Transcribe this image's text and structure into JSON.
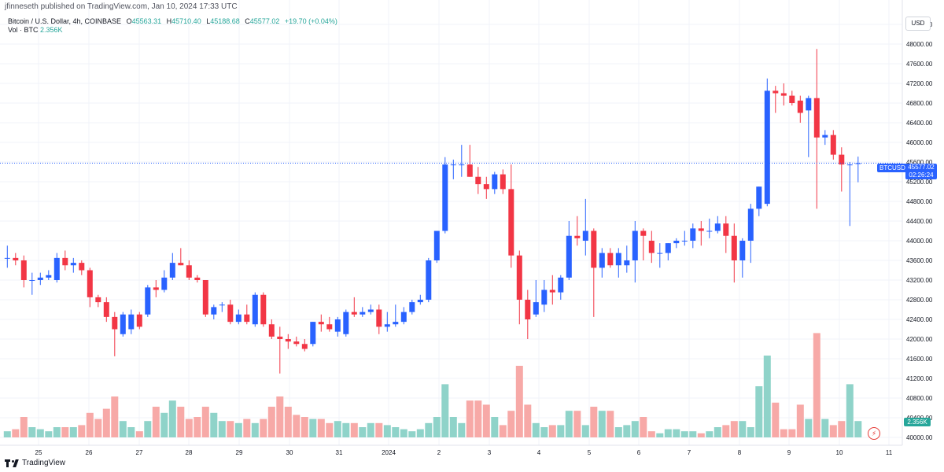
{
  "header": {
    "published": "jfinneseth published on TradingView.com, Jan 10, 2024 17:33 UTC"
  },
  "legend": {
    "symbol_line": "Bitcoin / U.S. Dollar, 4h, COINBASE",
    "o_label": "O",
    "o_value": "45563.31",
    "h_label": "H",
    "h_value": "45710.40",
    "l_label": "L",
    "l_value": "45188.68",
    "c_label": "C",
    "c_value": "45577.02",
    "change": "+19.70 (+0.04%)",
    "vol_label": "Vol · BTC",
    "vol_value": "2.356K"
  },
  "currency_button": "USD",
  "last_price": {
    "symbol": "BTCUSD",
    "price": "45577.02",
    "countdown": "02:26:24"
  },
  "volume_tag": "2.356K",
  "brand": "TradingView",
  "colors": {
    "up": "#2962ff",
    "down": "#f23645",
    "vol_up": "#8fd3c9",
    "vol_down": "#f7a9a7",
    "grid": "#f0f3fa",
    "price_line": "#2962ff"
  },
  "chart_data": {
    "type": "candlestick",
    "interval": "4h",
    "y_axis": {
      "min": 40000,
      "max": 48400,
      "ticks": [
        "40000.00",
        "40400.00",
        "40800.00",
        "41200.00",
        "41600.00",
        "42000.00",
        "42400.00",
        "42800.00",
        "43200.00",
        "43600.00",
        "44000.00",
        "44400.00",
        "44800.00",
        "45200.00",
        "45600.00",
        "46000.00",
        "46400.00",
        "46800.00",
        "47200.00",
        "47600.00",
        "48000.00",
        "48400.00"
      ]
    },
    "x_axis": {
      "ticks": [
        "25",
        "26",
        "27",
        "28",
        "29",
        "30",
        "31",
        "2024",
        "2",
        "3",
        "4",
        "5",
        "6",
        "7",
        "8",
        "9",
        "10",
        "11"
      ]
    },
    "candles": [
      {
        "o": 43650,
        "h": 43900,
        "l": 43450,
        "c": 43650,
        "v": 0.3
      },
      {
        "o": 43650,
        "h": 43750,
        "l": 43500,
        "c": 43600,
        "v": 0.4
      },
      {
        "o": 43600,
        "h": 43700,
        "l": 43050,
        "c": 43200,
        "v": 1.0
      },
      {
        "o": 43200,
        "h": 43350,
        "l": 42900,
        "c": 43200,
        "v": 0.5
      },
      {
        "o": 43200,
        "h": 43350,
        "l": 43100,
        "c": 43250,
        "v": 0.4
      },
      {
        "o": 43250,
        "h": 43400,
        "l": 43200,
        "c": 43300,
        "v": 0.3
      },
      {
        "o": 43200,
        "h": 43750,
        "l": 43150,
        "c": 43650,
        "v": 0.5
      },
      {
        "o": 43650,
        "h": 43800,
        "l": 43400,
        "c": 43500,
        "v": 0.5
      },
      {
        "o": 43500,
        "h": 43650,
        "l": 43350,
        "c": 43550,
        "v": 0.5
      },
      {
        "o": 43550,
        "h": 43600,
        "l": 43300,
        "c": 43400,
        "v": 0.6
      },
      {
        "o": 43400,
        "h": 43450,
        "l": 42650,
        "c": 42850,
        "v": 1.2
      },
      {
        "o": 42850,
        "h": 42900,
        "l": 42650,
        "c": 42750,
        "v": 0.9
      },
      {
        "o": 42750,
        "h": 42850,
        "l": 42350,
        "c": 42450,
        "v": 1.4
      },
      {
        "o": 42450,
        "h": 42550,
        "l": 41650,
        "c": 42200,
        "v": 2.0
      },
      {
        "o": 42100,
        "h": 42550,
        "l": 42050,
        "c": 42500,
        "v": 0.8
      },
      {
        "o": 42200,
        "h": 42600,
        "l": 42100,
        "c": 42500,
        "v": 0.5
      },
      {
        "o": 42500,
        "h": 42550,
        "l": 42200,
        "c": 42250,
        "v": 0.3
      },
      {
        "o": 42500,
        "h": 43100,
        "l": 42450,
        "c": 43050,
        "v": 0.8
      },
      {
        "o": 43050,
        "h": 43200,
        "l": 42850,
        "c": 43000,
        "v": 1.5
      },
      {
        "o": 43000,
        "h": 43400,
        "l": 42950,
        "c": 43250,
        "v": 1.2
      },
      {
        "o": 43250,
        "h": 43750,
        "l": 43200,
        "c": 43550,
        "v": 1.8
      },
      {
        "o": 43550,
        "h": 43850,
        "l": 43500,
        "c": 43500,
        "v": 1.5
      },
      {
        "o": 43500,
        "h": 43600,
        "l": 43200,
        "c": 43250,
        "v": 0.9
      },
      {
        "o": 43250,
        "h": 43300,
        "l": 43150,
        "c": 43200,
        "v": 1.0
      },
      {
        "o": 43200,
        "h": 43200,
        "l": 42450,
        "c": 42500,
        "v": 1.5
      },
      {
        "o": 42500,
        "h": 42700,
        "l": 42400,
        "c": 42650,
        "v": 1.2
      },
      {
        "o": 42700,
        "h": 42750,
        "l": 42550,
        "c": 42700,
        "v": 0.8
      },
      {
        "o": 42700,
        "h": 42800,
        "l": 42300,
        "c": 42350,
        "v": 0.8
      },
      {
        "o": 42350,
        "h": 42600,
        "l": 42300,
        "c": 42500,
        "v": 0.7
      },
      {
        "o": 42500,
        "h": 42700,
        "l": 42300,
        "c": 42350,
        "v": 0.9
      },
      {
        "o": 42300,
        "h": 42950,
        "l": 42250,
        "c": 42900,
        "v": 0.7
      },
      {
        "o": 42900,
        "h": 42950,
        "l": 42250,
        "c": 42300,
        "v": 0.9
      },
      {
        "o": 42300,
        "h": 42400,
        "l": 42000,
        "c": 42050,
        "v": 1.5
      },
      {
        "o": 42050,
        "h": 42250,
        "l": 41300,
        "c": 42000,
        "v": 2.0
      },
      {
        "o": 42000,
        "h": 42100,
        "l": 41800,
        "c": 41950,
        "v": 1.5
      },
      {
        "o": 41950,
        "h": 42050,
        "l": 41850,
        "c": 41900,
        "v": 1.1
      },
      {
        "o": 41900,
        "h": 42000,
        "l": 41750,
        "c": 41800,
        "v": 1.0
      },
      {
        "o": 41900,
        "h": 42350,
        "l": 41850,
        "c": 42350,
        "v": 0.9
      },
      {
        "o": 42350,
        "h": 42500,
        "l": 42150,
        "c": 42300,
        "v": 0.9
      },
      {
        "o": 42300,
        "h": 42450,
        "l": 42150,
        "c": 42200,
        "v": 0.7
      },
      {
        "o": 42150,
        "h": 42450,
        "l": 42050,
        "c": 42400,
        "v": 0.8
      },
      {
        "o": 42100,
        "h": 42600,
        "l": 42050,
        "c": 42550,
        "v": 0.7
      },
      {
        "o": 42550,
        "h": 42850,
        "l": 42450,
        "c": 42500,
        "v": 0.7
      },
      {
        "o": 42500,
        "h": 42650,
        "l": 42450,
        "c": 42550,
        "v": 0.5
      },
      {
        "o": 42550,
        "h": 42700,
        "l": 42500,
        "c": 42600,
        "v": 0.7
      },
      {
        "o": 42600,
        "h": 42700,
        "l": 42100,
        "c": 42250,
        "v": 0.7
      },
      {
        "o": 42250,
        "h": 42550,
        "l": 42150,
        "c": 42300,
        "v": 0.6
      },
      {
        "o": 42300,
        "h": 42700,
        "l": 42250,
        "c": 42350,
        "v": 0.5
      },
      {
        "o": 42350,
        "h": 42650,
        "l": 42300,
        "c": 42550,
        "v": 0.4
      },
      {
        "o": 42550,
        "h": 42800,
        "l": 42500,
        "c": 42750,
        "v": 0.3
      },
      {
        "o": 42750,
        "h": 42900,
        "l": 42700,
        "c": 42800,
        "v": 0.4
      },
      {
        "o": 42800,
        "h": 43650,
        "l": 42750,
        "c": 43600,
        "v": 0.7
      },
      {
        "o": 43600,
        "h": 44200,
        "l": 43550,
        "c": 44200,
        "v": 1.0
      },
      {
        "o": 44200,
        "h": 45700,
        "l": 44150,
        "c": 45550,
        "v": 2.6
      },
      {
        "o": 45550,
        "h": 45650,
        "l": 45250,
        "c": 45550,
        "v": 1.0
      },
      {
        "o": 45550,
        "h": 45950,
        "l": 45300,
        "c": 45550,
        "v": 0.7
      },
      {
        "o": 45550,
        "h": 45950,
        "l": 45300,
        "c": 45300,
        "v": 1.8
      },
      {
        "o": 45300,
        "h": 45500,
        "l": 44950,
        "c": 45150,
        "v": 1.8
      },
      {
        "o": 45150,
        "h": 45300,
        "l": 44850,
        "c": 45050,
        "v": 1.6
      },
      {
        "o": 45050,
        "h": 45400,
        "l": 44950,
        "c": 45350,
        "v": 1.0
      },
      {
        "o": 45350,
        "h": 45450,
        "l": 44950,
        "c": 45050,
        "v": 0.6
      },
      {
        "o": 45050,
        "h": 45550,
        "l": 43450,
        "c": 43700,
        "v": 1.3
      },
      {
        "o": 43700,
        "h": 43800,
        "l": 42300,
        "c": 42800,
        "v": 3.5
      },
      {
        "o": 42800,
        "h": 43000,
        "l": 42000,
        "c": 42400,
        "v": 1.6
      },
      {
        "o": 42500,
        "h": 43200,
        "l": 42450,
        "c": 42750,
        "v": 0.7
      },
      {
        "o": 42700,
        "h": 43200,
        "l": 42550,
        "c": 43000,
        "v": 0.5
      },
      {
        "o": 43000,
        "h": 43300,
        "l": 42700,
        "c": 42950,
        "v": 0.6
      },
      {
        "o": 42950,
        "h": 43300,
        "l": 42800,
        "c": 43250,
        "v": 0.6
      },
      {
        "o": 43250,
        "h": 44400,
        "l": 43200,
        "c": 44100,
        "v": 1.3
      },
      {
        "o": 44100,
        "h": 44500,
        "l": 43900,
        "c": 44050,
        "v": 1.3
      },
      {
        "o": 44000,
        "h": 44850,
        "l": 43700,
        "c": 44200,
        "v": 0.6
      },
      {
        "o": 44200,
        "h": 44250,
        "l": 42450,
        "c": 43450,
        "v": 1.5
      },
      {
        "o": 43450,
        "h": 43850,
        "l": 43250,
        "c": 43750,
        "v": 1.3
      },
      {
        "o": 43750,
        "h": 43850,
        "l": 43450,
        "c": 43500,
        "v": 1.3
      },
      {
        "o": 43500,
        "h": 43850,
        "l": 43250,
        "c": 43750,
        "v": 0.5
      },
      {
        "o": 43500,
        "h": 43900,
        "l": 43350,
        "c": 43600,
        "v": 0.6
      },
      {
        "o": 43600,
        "h": 44400,
        "l": 43150,
        "c": 44200,
        "v": 0.8
      },
      {
        "o": 44200,
        "h": 44250,
        "l": 43600,
        "c": 44100,
        "v": 1.0
      },
      {
        "o": 44000,
        "h": 44200,
        "l": 43550,
        "c": 43750,
        "v": 0.3
      },
      {
        "o": 43750,
        "h": 43950,
        "l": 43450,
        "c": 43750,
        "v": 0.2
      },
      {
        "o": 43750,
        "h": 43950,
        "l": 43600,
        "c": 43950,
        "v": 0.4
      },
      {
        "o": 43950,
        "h": 44050,
        "l": 43850,
        "c": 44000,
        "v": 0.4
      },
      {
        "o": 44000,
        "h": 44200,
        "l": 43900,
        "c": 44000,
        "v": 0.3
      },
      {
        "o": 44000,
        "h": 44350,
        "l": 43850,
        "c": 44250,
        "v": 0.3
      },
      {
        "o": 44250,
        "h": 44400,
        "l": 43900,
        "c": 44200,
        "v": 0.2
      },
      {
        "o": 44200,
        "h": 44450,
        "l": 44050,
        "c": 44200,
        "v": 0.3
      },
      {
        "o": 44200,
        "h": 44500,
        "l": 44150,
        "c": 44350,
        "v": 0.5
      },
      {
        "o": 44350,
        "h": 44500,
        "l": 43750,
        "c": 44100,
        "v": 0.6
      },
      {
        "o": 44100,
        "h": 44350,
        "l": 43150,
        "c": 43600,
        "v": 0.8
      },
      {
        "o": 43600,
        "h": 44050,
        "l": 43250,
        "c": 44000,
        "v": 0.8
      },
      {
        "o": 44000,
        "h": 44750,
        "l": 43550,
        "c": 44650,
        "v": 0.5
      },
      {
        "o": 44650,
        "h": 45100,
        "l": 44500,
        "c": 45100,
        "v": 2.5
      },
      {
        "o": 44750,
        "h": 47300,
        "l": 44700,
        "c": 47050,
        "v": 4.0
      },
      {
        "o": 47050,
        "h": 47150,
        "l": 46600,
        "c": 47000,
        "v": 1.7
      },
      {
        "o": 47000,
        "h": 47200,
        "l": 46750,
        "c": 46950,
        "v": 0.4
      },
      {
        "o": 46950,
        "h": 47050,
        "l": 46750,
        "c": 46800,
        "v": 0.4
      },
      {
        "o": 46850,
        "h": 46950,
        "l": 46400,
        "c": 46600,
        "v": 1.6
      },
      {
        "o": 46650,
        "h": 46950,
        "l": 45700,
        "c": 46900,
        "v": 0.9
      },
      {
        "o": 46900,
        "h": 47900,
        "l": 44650,
        "c": 46100,
        "v": 5.1
      },
      {
        "o": 46100,
        "h": 46250,
        "l": 45950,
        "c": 46150,
        "v": 0.9
      },
      {
        "o": 46150,
        "h": 46250,
        "l": 45650,
        "c": 45750,
        "v": 0.6
      },
      {
        "o": 45750,
        "h": 45900,
        "l": 45000,
        "c": 45550,
        "v": 0.8
      },
      {
        "o": 45550,
        "h": 45600,
        "l": 44300,
        "c": 45550,
        "v": 2.6
      },
      {
        "o": 45563.31,
        "h": 45710.4,
        "l": 45188.68,
        "c": 45577.02,
        "v": 0.8
      }
    ]
  }
}
